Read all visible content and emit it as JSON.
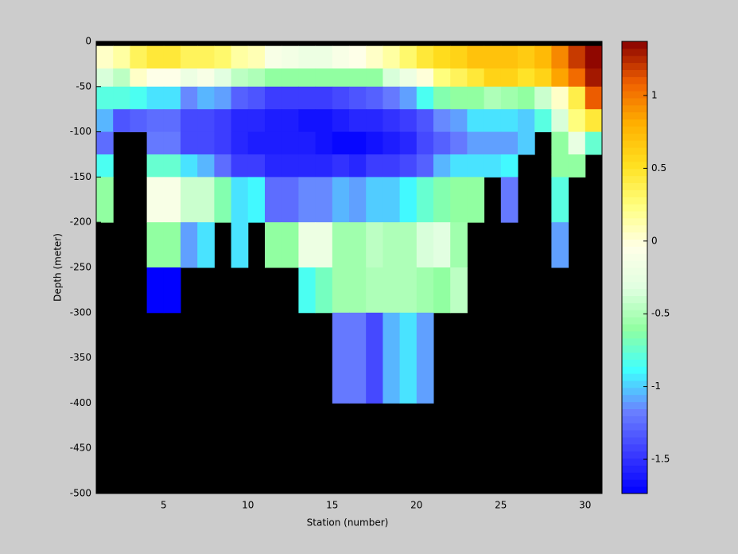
{
  "chart_data": {
    "type": "heatmap",
    "xlabel": "Station (number)",
    "ylabel": "Depth (meter)",
    "x": [
      1,
      2,
      3,
      4,
      5,
      6,
      7,
      8,
      9,
      10,
      11,
      12,
      13,
      14,
      15,
      16,
      17,
      18,
      19,
      20,
      21,
      22,
      23,
      24,
      25,
      26,
      27,
      28,
      29,
      30,
      31
    ],
    "y": [
      0,
      -5,
      -30,
      -50,
      -75,
      -100,
      -125,
      -150,
      -200,
      -250,
      -300,
      -400,
      -500
    ],
    "z": [
      [
        null,
        null,
        null,
        null,
        null,
        null,
        null,
        null,
        null,
        null,
        null,
        null,
        null,
        null,
        null,
        null,
        null,
        null,
        null,
        null,
        null,
        null,
        null,
        null,
        null,
        null,
        null,
        null,
        null,
        null
      ],
      [
        0.05,
        0.15,
        0.35,
        0.45,
        0.45,
        0.35,
        0.35,
        0.3,
        0.15,
        0.1,
        -0.1,
        -0.15,
        -0.2,
        -0.2,
        -0.1,
        -0.05,
        0.05,
        0.15,
        0.3,
        0.45,
        0.55,
        0.6,
        0.7,
        0.7,
        0.7,
        0.65,
        0.75,
        0.95,
        1.2,
        1.35
      ],
      [
        -0.35,
        -0.45,
        0.05,
        -0.05,
        -0.05,
        -0.2,
        -0.1,
        -0.3,
        -0.45,
        -0.5,
        -0.6,
        -0.6,
        -0.6,
        -0.6,
        -0.6,
        -0.6,
        -0.6,
        -0.35,
        -0.2,
        0.0,
        0.25,
        0.35,
        0.45,
        0.6,
        0.6,
        0.5,
        0.6,
        0.85,
        1.05,
        1.3
      ],
      [
        -0.8,
        -0.8,
        -0.85,
        -0.95,
        -0.95,
        -1.15,
        -1.05,
        -1.1,
        -1.3,
        -1.35,
        -1.45,
        -1.45,
        -1.45,
        -1.45,
        -1.4,
        -1.35,
        -1.3,
        -1.2,
        -1.1,
        -0.85,
        -0.65,
        -0.6,
        -0.6,
        -0.5,
        -0.55,
        -0.6,
        -0.4,
        0.05,
        0.4,
        1.1
      ],
      [
        -1.05,
        -1.35,
        -1.3,
        -1.25,
        -1.25,
        -1.4,
        -1.4,
        -1.45,
        -1.55,
        -1.55,
        -1.6,
        -1.6,
        -1.65,
        -1.65,
        -1.6,
        -1.55,
        -1.55,
        -1.5,
        -1.45,
        -1.35,
        -1.15,
        -1.1,
        -0.95,
        -0.95,
        -0.95,
        -1.0,
        -0.8,
        -0.35,
        0.25,
        0.45
      ],
      [
        -1.25,
        null,
        null,
        -1.2,
        -1.2,
        -1.4,
        -1.4,
        -1.45,
        -1.55,
        -1.6,
        -1.6,
        -1.6,
        -1.6,
        -1.65,
        -1.7,
        -1.7,
        -1.65,
        -1.6,
        -1.55,
        -1.4,
        -1.3,
        -1.2,
        -1.1,
        -1.1,
        -1.1,
        -1.0,
        null,
        -0.6,
        -0.25,
        -0.75
      ],
      [
        -0.85,
        null,
        null,
        -0.75,
        -0.75,
        -0.95,
        -1.05,
        -1.25,
        -1.45,
        -1.45,
        -1.55,
        -1.55,
        -1.55,
        -1.55,
        -1.5,
        -1.55,
        -1.45,
        -1.45,
        -1.4,
        -1.3,
        -1.05,
        -0.95,
        -0.95,
        -0.95,
        -0.9,
        null,
        null,
        -0.6,
        -0.6,
        null
      ],
      [
        -0.6,
        null,
        null,
        -0.1,
        -0.1,
        -0.4,
        -0.4,
        -0.65,
        -0.95,
        -0.9,
        -1.25,
        -1.25,
        -1.15,
        -1.15,
        -1.05,
        -1.1,
        -1.0,
        -1.0,
        -0.9,
        -0.75,
        -0.65,
        -0.6,
        -0.6,
        null,
        -1.2,
        null,
        null,
        -0.8,
        null,
        null
      ],
      [
        null,
        null,
        null,
        -0.6,
        -0.6,
        -1.1,
        -0.95,
        null,
        -0.95,
        null,
        -0.6,
        -0.6,
        -0.2,
        -0.2,
        -0.55,
        -0.55,
        -0.45,
        -0.5,
        -0.5,
        -0.35,
        -0.3,
        -0.55,
        null,
        null,
        null,
        null,
        null,
        -1.1,
        null,
        null
      ],
      [
        null,
        null,
        null,
        -1.73,
        -1.73,
        null,
        null,
        null,
        null,
        null,
        null,
        null,
        -0.85,
        -0.7,
        -0.55,
        -0.55,
        -0.5,
        -0.5,
        -0.5,
        -0.55,
        -0.6,
        -0.45,
        null,
        null,
        null,
        null,
        null,
        null,
        null,
        null
      ],
      [
        null,
        null,
        null,
        null,
        null,
        null,
        null,
        null,
        null,
        null,
        null,
        null,
        null,
        null,
        -1.2,
        -1.2,
        -1.4,
        -1.05,
        -0.95,
        -1.1,
        null,
        null,
        null,
        null,
        null,
        null,
        null,
        null,
        null,
        null
      ],
      [
        null,
        null,
        null,
        null,
        null,
        null,
        null,
        null,
        null,
        null,
        null,
        null,
        null,
        null,
        null,
        null,
        null,
        null,
        null,
        null,
        null,
        null,
        null,
        null,
        null,
        null,
        null,
        null,
        null,
        null
      ]
    ],
    "xlim": [
      1,
      31
    ],
    "xticks": [
      5,
      10,
      15,
      20,
      25,
      30
    ],
    "ylim": [
      -500,
      0
    ],
    "yticks": [
      -500,
      -450,
      -400,
      -350,
      -300,
      -250,
      -200,
      -150,
      -100,
      -50,
      0
    ],
    "clim": [
      -1.735,
      1.372
    ],
    "cticks": [
      -1.5,
      -1,
      -0.5,
      0,
      0.5,
      1
    ],
    "colormap": [
      "#0000ff",
      "#3c3cff",
      "#6a80ff",
      "#40ffff",
      "#90ffa0",
      "#e0ffe0",
      "#ffffe8",
      "#ffff80",
      "#ffe020",
      "#ffb000",
      "#f06000",
      "#880000"
    ],
    "nan_color": "#000000"
  }
}
